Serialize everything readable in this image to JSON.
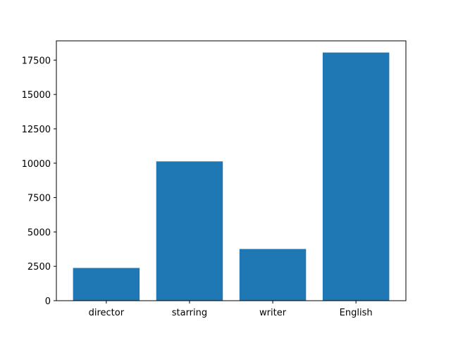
{
  "chart_data": {
    "type": "bar",
    "categories": [
      "director",
      "starring",
      "writer",
      "English"
    ],
    "values": [
      2380,
      10130,
      3760,
      18050
    ],
    "ylim": [
      0,
      18900
    ],
    "yticks": [
      0,
      2500,
      5000,
      7500,
      10000,
      12500,
      15000,
      17500
    ],
    "ytick_labels": [
      "0",
      "2500",
      "5000",
      "7500",
      "10000",
      "12500",
      "15000",
      "17500"
    ],
    "grid": false,
    "bar_color": "#1f77b4",
    "title": "",
    "xlabel": "",
    "ylabel": ""
  }
}
